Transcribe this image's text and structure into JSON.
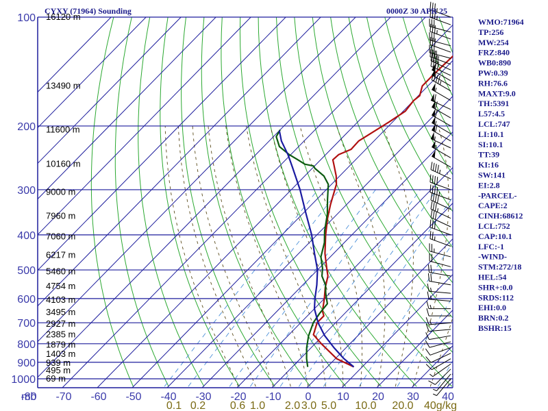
{
  "header": {
    "station": "CYXY (71964) Sounding",
    "time": "0000Z 30 APR 25"
  },
  "colors": {
    "grid": "#1c1c9c",
    "isotherm": "#1c1c9c",
    "dry_adiabat": "#2aa830",
    "moist_adiabat": "#5a4a1a",
    "mixing_ratio": "#4a8fd8",
    "temperature": "#b01010",
    "dewpoint": "#0c5a10",
    "parcel": "#1a1aa0",
    "wind": "#000000"
  },
  "indices": [
    "WMO:71964",
    "TP:256",
    "MW:254",
    "FRZ:840",
    "WB0:890",
    "PW:0.39",
    "RH:76.6",
    "MAXT:9.0",
    "TH:5391",
    "L57:4.5",
    "LCL:747",
    "LI:10.1",
    "SI:10.1",
    "TT:39",
    "KI:16",
    "SW:141",
    "EI:2.8",
    "-PARCEL-",
    "CAPE:2",
    "CINH:68612",
    "LCL:752",
    "CAP:10.1",
    "LFC:-1",
    "-WIND-",
    "STM:272/18",
    "HEL:54",
    "SHR+:0.0",
    "SRDS:112",
    "EHI:0.0",
    "BRN:0.2",
    "BSHR:15"
  ],
  "chart_data": {
    "type": "line",
    "title": "CYXY (71964) Sounding",
    "subtitle": "0000Z 30 APR 25",
    "pressure_axis": {
      "label": "mb",
      "scale": "log",
      "ticks": [
        100,
        200,
        300,
        400,
        500,
        600,
        700,
        800,
        900,
        1000
      ],
      "tick_labels": [
        "100",
        "200",
        "300",
        "400",
        "500",
        "600",
        "700",
        "800",
        "900",
        "1000"
      ],
      "range": [
        100,
        1050
      ]
    },
    "temperature_axis": {
      "ticks": [
        -80,
        -70,
        -60,
        -50,
        -40,
        -30,
        -20,
        -10,
        0,
        10,
        20,
        30,
        40
      ],
      "tick_labels": [
        "-80",
        "-70",
        "-60",
        "-50",
        "-40",
        "-30",
        "-20",
        "-10",
        "0",
        "10",
        "20",
        "30",
        "40"
      ],
      "range": [
        -80,
        40
      ]
    },
    "mixing_ratio_labels": {
      "unit": "g/kg",
      "labels": [
        "0.1",
        "0.2",
        "0.6",
        "1.0",
        "2.0",
        "3.0",
        "5.0",
        "10.0",
        "20.0",
        "40g/kg"
      ]
    },
    "height_labels": [
      {
        "p": 1000,
        "text": "69 m"
      },
      {
        "p": 950,
        "text": "495 m"
      },
      {
        "p": 905,
        "text": "939 m"
      },
      {
        "p": 855,
        "text": "1403 m"
      },
      {
        "p": 805,
        "text": "1879 m"
      },
      {
        "p": 755,
        "text": "2385 m"
      },
      {
        "p": 705,
        "text": "2927 m"
      },
      {
        "p": 655,
        "text": "3495 m"
      },
      {
        "p": 605,
        "text": "4103 m"
      },
      {
        "p": 555,
        "text": "4754 m"
      },
      {
        "p": 505,
        "text": "5460 m"
      },
      {
        "p": 455,
        "text": "6217 m"
      },
      {
        "p": 405,
        "text": "7060 m"
      },
      {
        "p": 355,
        "text": "7960 m"
      },
      {
        "p": 305,
        "text": "9000 m"
      },
      {
        "p": 255,
        "text": "10160 m"
      },
      {
        "p": 205,
        "text": "11600 m"
      },
      {
        "p": 155,
        "text": "13490 m"
      },
      {
        "p": 100,
        "text": "16120 m"
      }
    ],
    "series": [
      {
        "id": "temperature",
        "points": [
          [
            927,
            7.6
          ],
          [
            880,
            0.4
          ],
          [
            800,
            -8.2
          ],
          [
            755,
            -13.0
          ],
          [
            700,
            -15.3
          ],
          [
            690,
            -15.3
          ],
          [
            670,
            -15.3
          ],
          [
            650,
            -17.0
          ],
          [
            600,
            -20.0
          ],
          [
            560,
            -22.8
          ],
          [
            520,
            -25.3
          ],
          [
            495,
            -27.8
          ],
          [
            450,
            -32.5
          ],
          [
            400,
            -37.5
          ],
          [
            360,
            -41.6
          ],
          [
            330,
            -44.6
          ],
          [
            290,
            -48.6
          ],
          [
            275,
            -51.0
          ],
          [
            255,
            -55.0
          ],
          [
            248,
            -56.5
          ],
          [
            240,
            -56.3
          ],
          [
            232,
            -54.2
          ],
          [
            220,
            -54.4
          ],
          [
            205,
            -52.4
          ],
          [
            195,
            -51.0
          ],
          [
            182,
            -49.4
          ],
          [
            170,
            -50.0
          ],
          [
            165,
            -49.6
          ],
          [
            155,
            -51.6
          ],
          [
            145,
            -51.6
          ],
          [
            135,
            -51.4
          ],
          [
            128,
            -51.2
          ],
          [
            120,
            -49.6
          ],
          [
            114,
            -51.2
          ],
          [
            108,
            -51.6
          ],
          [
            100,
            -54.7
          ]
        ]
      },
      {
        "id": "dewpoint",
        "points": [
          [
            927,
            -5.6
          ],
          [
            880,
            -8.2
          ],
          [
            820,
            -11.3
          ],
          [
            760,
            -14.1
          ],
          [
            700,
            -16.4
          ],
          [
            660,
            -17.2
          ],
          [
            620,
            -17.7
          ],
          [
            580,
            -21.1
          ],
          [
            550,
            -23.5
          ],
          [
            520,
            -27.0
          ],
          [
            495,
            -29.0
          ],
          [
            460,
            -32.7
          ],
          [
            420,
            -35.7
          ],
          [
            390,
            -38.9
          ],
          [
            350,
            -42.9
          ],
          [
            320,
            -46.8
          ],
          [
            290,
            -50.9
          ],
          [
            275,
            -54.5
          ],
          [
            262,
            -59.2
          ],
          [
            258,
            -60.3
          ],
          [
            255,
            -63.3
          ],
          [
            248,
            -66.5
          ],
          [
            240,
            -70.4
          ],
          [
            228,
            -75.5
          ],
          [
            214,
            -79.2
          ],
          [
            205,
            -80.0
          ]
        ]
      },
      {
        "id": "parcel",
        "points": [
          [
            927,
            7.6
          ],
          [
            880,
            2.5
          ],
          [
            820,
            -3.5
          ],
          [
            760,
            -9.5
          ],
          [
            700,
            -15.0
          ],
          [
            640,
            -20.0
          ],
          [
            600,
            -22.7
          ],
          [
            550,
            -26.0
          ],
          [
            500,
            -30.0
          ],
          [
            450,
            -35.5
          ],
          [
            400,
            -41.5
          ],
          [
            350,
            -49.0
          ],
          [
            300,
            -57.5
          ],
          [
            260,
            -66.0
          ],
          [
            240,
            -70.8
          ],
          [
            220,
            -76.5
          ],
          [
            206,
            -80.0
          ]
        ]
      }
    ],
    "winds": [
      {
        "p": 100,
        "dir": 290,
        "spd": 35
      },
      {
        "p": 105,
        "dir": 290,
        "spd": 35
      },
      {
        "p": 110,
        "dir": 285,
        "spd": 30
      },
      {
        "p": 115,
        "dir": 290,
        "spd": 35
      },
      {
        "p": 120,
        "dir": 285,
        "spd": 30
      },
      {
        "p": 125,
        "dir": 290,
        "spd": 30
      },
      {
        "p": 130,
        "dir": 285,
        "spd": 35
      },
      {
        "p": 135,
        "dir": 290,
        "spd": 35
      },
      {
        "p": 140,
        "dir": 295,
        "spd": 40
      },
      {
        "p": 145,
        "dir": 295,
        "spd": 40
      },
      {
        "p": 150,
        "dir": 300,
        "spd": 50
      },
      {
        "p": 155,
        "dir": 300,
        "spd": 50
      },
      {
        "p": 160,
        "dir": 300,
        "spd": 45
      },
      {
        "p": 170,
        "dir": 300,
        "spd": 55
      },
      {
        "p": 180,
        "dir": 295,
        "spd": 60
      },
      {
        "p": 190,
        "dir": 300,
        "spd": 60
      },
      {
        "p": 200,
        "dir": 300,
        "spd": 60
      },
      {
        "p": 210,
        "dir": 300,
        "spd": 55
      },
      {
        "p": 220,
        "dir": 300,
        "spd": 60
      },
      {
        "p": 230,
        "dir": 295,
        "spd": 55
      },
      {
        "p": 245,
        "dir": 300,
        "spd": 55
      },
      {
        "p": 260,
        "dir": 300,
        "spd": 50
      },
      {
        "p": 280,
        "dir": 295,
        "spd": 45
      },
      {
        "p": 300,
        "dir": 290,
        "spd": 40
      },
      {
        "p": 320,
        "dir": 290,
        "spd": 45
      },
      {
        "p": 340,
        "dir": 295,
        "spd": 40
      },
      {
        "p": 360,
        "dir": 295,
        "spd": 35
      },
      {
        "p": 380,
        "dir": 295,
        "spd": 30
      },
      {
        "p": 400,
        "dir": 290,
        "spd": 30
      },
      {
        "p": 430,
        "dir": 290,
        "spd": 25
      },
      {
        "p": 460,
        "dir": 285,
        "spd": 25
      },
      {
        "p": 490,
        "dir": 285,
        "spd": 20
      },
      {
        "p": 520,
        "dir": 280,
        "spd": 20
      },
      {
        "p": 550,
        "dir": 280,
        "spd": 20
      },
      {
        "p": 580,
        "dir": 275,
        "spd": 15
      },
      {
        "p": 610,
        "dir": 275,
        "spd": 15
      },
      {
        "p": 640,
        "dir": 270,
        "spd": 15
      },
      {
        "p": 670,
        "dir": 270,
        "spd": 10
      },
      {
        "p": 700,
        "dir": 265,
        "spd": 15
      },
      {
        "p": 730,
        "dir": 265,
        "spd": 10
      },
      {
        "p": 760,
        "dir": 260,
        "spd": 10
      },
      {
        "p": 790,
        "dir": 255,
        "spd": 10
      },
      {
        "p": 820,
        "dir": 250,
        "spd": 10
      },
      {
        "p": 850,
        "dir": 245,
        "spd": 10
      },
      {
        "p": 880,
        "dir": 240,
        "spd": 10
      },
      {
        "p": 910,
        "dir": 235,
        "spd": 5
      },
      {
        "p": 940,
        "dir": 225,
        "spd": 10
      },
      {
        "p": 970,
        "dir": 220,
        "spd": 5
      },
      {
        "p": 1000,
        "dir": 220,
        "spd": 5
      }
    ],
    "grid": true,
    "legend": "none"
  }
}
